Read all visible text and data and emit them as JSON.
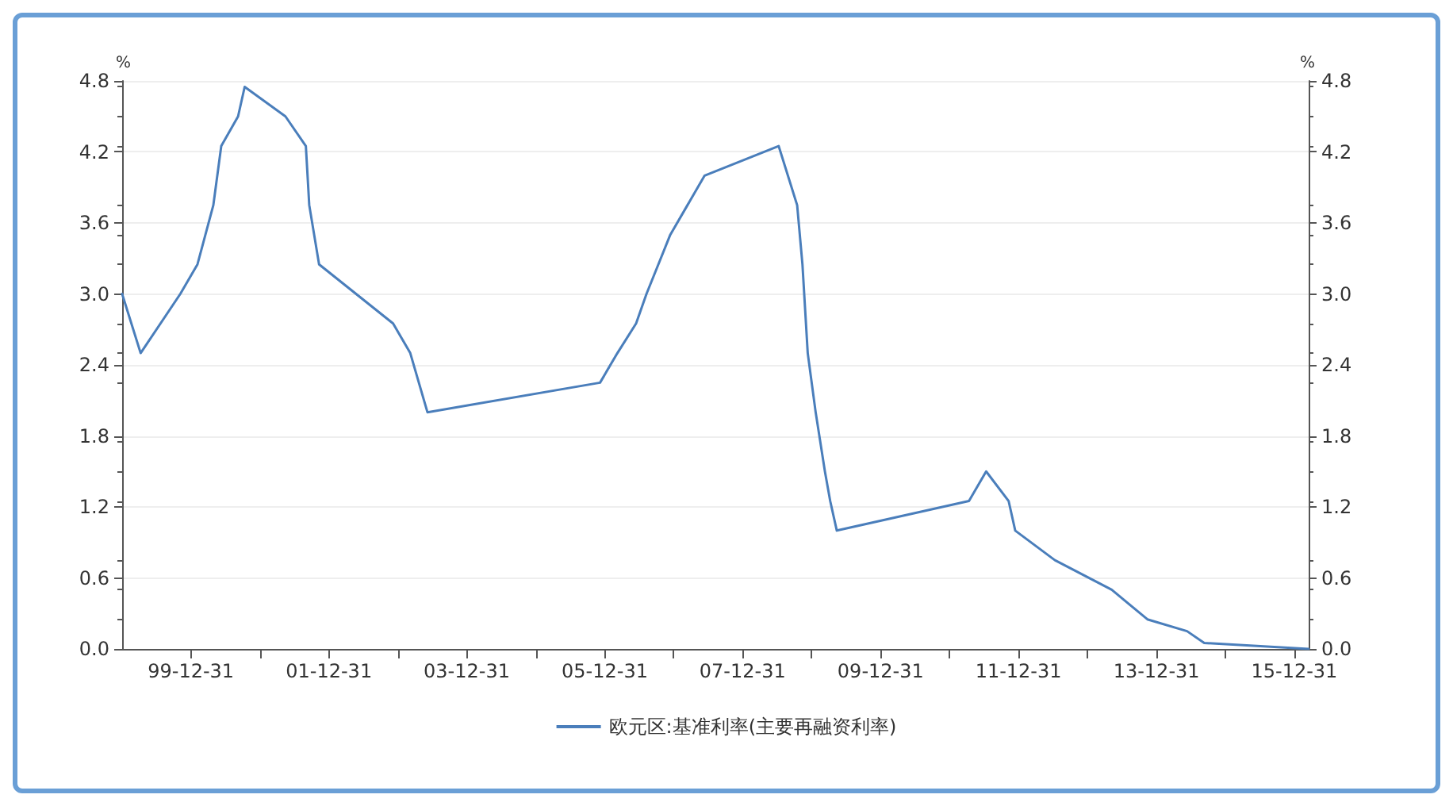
{
  "chart_data": {
    "type": "line",
    "ylabel": "%",
    "y2label": "%",
    "x": [
      "1999-01-01",
      "1999-04-09",
      "1999-11-05",
      "2000-02-04",
      "2000-03-17",
      "2000-04-28",
      "2000-06-09",
      "2000-09-06",
      "2000-10-11",
      "2001-05-15",
      "2001-08-31",
      "2001-09-18",
      "2001-11-09",
      "2002-12-06",
      "2003-03-07",
      "2003-06-06",
      "2005-12-06",
      "2006-03-08",
      "2006-06-15",
      "2006-08-09",
      "2006-10-11",
      "2006-12-13",
      "2007-03-14",
      "2007-06-13",
      "2008-07-09",
      "2008-10-15",
      "2008-11-12",
      "2008-12-10",
      "2009-01-21",
      "2009-03-11",
      "2009-04-08",
      "2009-05-13",
      "2011-04-13",
      "2011-07-13",
      "2011-11-09",
      "2011-12-14",
      "2012-07-11",
      "2013-05-08",
      "2013-11-13",
      "2014-06-11",
      "2014-09-10",
      "2016-03-16"
    ],
    "series": [
      {
        "name": "欧元区:基准利率(主要再融资利率)",
        "color": "#4a7ebb",
        "values": [
          3.0,
          2.5,
          3.0,
          3.25,
          3.5,
          3.75,
          4.25,
          4.5,
          4.75,
          4.5,
          4.25,
          3.75,
          3.25,
          2.75,
          2.5,
          2.0,
          2.25,
          2.5,
          2.75,
          3.0,
          3.25,
          3.5,
          3.75,
          4.0,
          4.25,
          3.75,
          3.25,
          2.5,
          2.0,
          1.5,
          1.25,
          1.0,
          1.25,
          1.5,
          1.25,
          1.0,
          0.75,
          0.5,
          0.25,
          0.15,
          0.05,
          0.0
        ]
      }
    ],
    "xlim": [
      "1999-01-01",
      "2016-03-16"
    ],
    "xticks": [
      {
        "value": "1999-12-31",
        "label": "99-12-31"
      },
      {
        "value": "2000-12-31",
        "label": null
      },
      {
        "value": "2001-12-31",
        "label": "01-12-31"
      },
      {
        "value": "2002-12-31",
        "label": null
      },
      {
        "value": "2003-12-31",
        "label": "03-12-31"
      },
      {
        "value": "2004-12-31",
        "label": null
      },
      {
        "value": "2005-12-31",
        "label": "05-12-31"
      },
      {
        "value": "2006-12-31",
        "label": null
      },
      {
        "value": "2007-12-31",
        "label": "07-12-31"
      },
      {
        "value": "2008-12-31",
        "label": null
      },
      {
        "value": "2009-12-31",
        "label": "09-12-31"
      },
      {
        "value": "2010-12-31",
        "label": null
      },
      {
        "value": "2011-12-31",
        "label": "11-12-31"
      },
      {
        "value": "2012-12-31",
        "label": null
      },
      {
        "value": "2013-12-31",
        "label": "13-12-31"
      },
      {
        "value": "2014-12-31",
        "label": null
      },
      {
        "value": "2015-12-31",
        "label": "15-12-31"
      }
    ],
    "ylim": [
      0,
      4.8
    ],
    "yticks": [
      {
        "value": 0,
        "label": "0.0"
      },
      {
        "value": 0.6,
        "label": "0.6"
      },
      {
        "value": 1.2,
        "label": "1.2"
      },
      {
        "value": 1.8,
        "label": "1.8"
      },
      {
        "value": 2.4,
        "label": "2.4"
      },
      {
        "value": 3.0,
        "label": "3.0"
      },
      {
        "value": 3.6,
        "label": "3.6"
      },
      {
        "value": 4.2,
        "label": "4.2"
      },
      {
        "value": 4.8,
        "label": "4.8"
      }
    ],
    "y2lim": [
      0,
      4.8
    ],
    "y2ticks": [
      {
        "value": 0,
        "label": "0.0"
      },
      {
        "value": 0.6,
        "label": "0.6"
      },
      {
        "value": 1.2,
        "label": "1.2"
      },
      {
        "value": 1.8,
        "label": "1.8"
      },
      {
        "value": 2.4,
        "label": "2.4"
      },
      {
        "value": 3.0,
        "label": "3.0"
      },
      {
        "value": 3.6,
        "label": "3.6"
      },
      {
        "value": 4.2,
        "label": "4.2"
      },
      {
        "value": 4.8,
        "label": "4.8"
      }
    ],
    "grid": "y",
    "legend": "bottom",
    "marker": "none",
    "line_style": "solid"
  }
}
